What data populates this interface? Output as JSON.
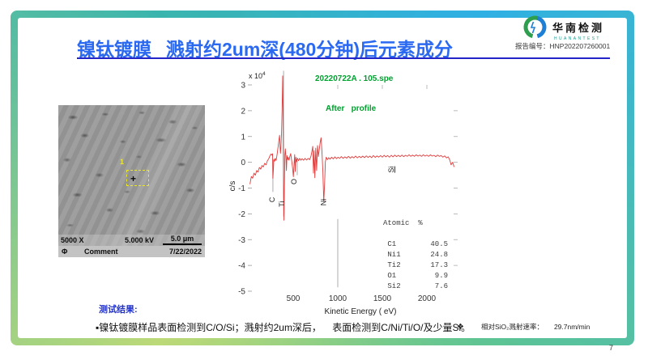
{
  "slide": {
    "title_part1": "镍钛镀膜",
    "title_part2": "溅射约2um深(480分钟)后元素成分",
    "report_number": "报告编号：HNP202207260001",
    "page_number": "7",
    "logo": {
      "name": "华南检测",
      "subtitle": "HUANANTEST"
    },
    "results": {
      "label": "测试结果:",
      "text": "▪镍钛镀膜样品表面检测到C/O/Si；溅射约2um深后，    表面检测到C/Ni/Ti/O/及少量Si。",
      "note_icon": "❖",
      "note_label": "相对SiO₂溅射速率：",
      "note_value": "29.7nm/min"
    }
  },
  "sem": {
    "magnification": "5000 X",
    "voltage": "5.000 kV",
    "scale_label": "5.0 μm",
    "roi_label": "1",
    "roi_cross": "+",
    "probe_symbol": "Φ",
    "comment_label": "Comment",
    "date": "7/22/2022"
  },
  "chart_data": {
    "type": "line",
    "title": "20220722A . 105.spe",
    "subtitle": "After   profile",
    "xlabel": "Kinetic Energy ( eV)",
    "ylabel": "c/s",
    "y_scale_label": "x 10",
    "y_scale_exponent": "4",
    "xlim": [
      0,
      2345
    ],
    "ylim": [
      -5,
      3
    ],
    "xticks": [
      500,
      1000,
      1500,
      2000
    ],
    "yticks": [
      3,
      2,
      1,
      0,
      -1,
      -2,
      -3,
      -4,
      -5
    ],
    "grid": false,
    "line_color": "#e23b3b",
    "dropline_color": "#b3b3b3",
    "title_color": "#00a02f",
    "element_labels": [
      {
        "label": "C",
        "ev": 290,
        "value": -1.45,
        "underline": false
      },
      {
        "label": "Ti",
        "ev": 400,
        "value": -1.62,
        "underline": false
      },
      {
        "label": "O",
        "ev": 536,
        "value": -0.75,
        "underline": false
      },
      {
        "label": "Ni",
        "ev": 866,
        "value": -1.55,
        "underline": false
      },
      {
        "label": "Si",
        "ev": 1627,
        "value": -0.28,
        "underline": true
      }
    ],
    "droplines": [
      {
        "ev": 272,
        "from": 0.1,
        "to": -1.15
      },
      {
        "ev": 392,
        "from": 3.55,
        "to": -2.1
      },
      {
        "ev": 545,
        "from": 0.05,
        "to": -0.5
      },
      {
        "ev": 1000,
        "from": -2.2,
        "to": -4.85
      }
    ],
    "atomic_table": {
      "header": "Atomic  %",
      "rows": [
        {
          "element": "C1",
          "value": "40.5"
        },
        {
          "element": "Ni1",
          "value": "24.8"
        },
        {
          "element": "Ti2",
          "value": "17.3"
        },
        {
          "element": "O1",
          "value": "9.9"
        },
        {
          "element": "Si2",
          "value": "7.6"
        }
      ]
    },
    "series": [
      {
        "name": "AES survey spectrum",
        "points": [
          [
            15,
            -0.85
          ],
          [
            30,
            -0.55
          ],
          [
            45,
            -0.62
          ],
          [
            60,
            -0.42
          ],
          [
            75,
            -0.5
          ],
          [
            90,
            -0.32
          ],
          [
            105,
            -0.38
          ],
          [
            120,
            -0.2
          ],
          [
            135,
            -0.27
          ],
          [
            150,
            -0.12
          ],
          [
            165,
            -0.18
          ],
          [
            180,
            -0.04
          ],
          [
            195,
            -0.1
          ],
          [
            210,
            0.06
          ],
          [
            225,
            0.14
          ],
          [
            240,
            0.26
          ],
          [
            252,
            0.32
          ],
          [
            263,
            0.27
          ],
          [
            268,
            0.33
          ],
          [
            272,
            -0.62
          ],
          [
            277,
            -0.3
          ],
          [
            283,
            0.12
          ],
          [
            291,
            0.04
          ],
          [
            299,
            0.15
          ],
          [
            307,
            0.07
          ],
          [
            315,
            0.2
          ],
          [
            323,
            0.4
          ],
          [
            331,
            0.62
          ],
          [
            339,
            0.85
          ],
          [
            347,
            1.05
          ],
          [
            352,
            0.6
          ],
          [
            357,
            0.35
          ],
          [
            363,
            0.65
          ],
          [
            369,
            1.15
          ],
          [
            375,
            2.1
          ],
          [
            382,
            3.35
          ],
          [
            387,
            1.6
          ],
          [
            392,
            -1.2
          ],
          [
            396,
            -2.25
          ],
          [
            401,
            -0.9
          ],
          [
            406,
            0.3
          ],
          [
            412,
            0.52
          ],
          [
            418,
            0.18
          ],
          [
            424,
            -0.32
          ],
          [
            430,
            0.26
          ],
          [
            436,
            0.1
          ],
          [
            444,
            0.2
          ],
          [
            453,
            0.08
          ],
          [
            462,
            0.22
          ],
          [
            472,
            0.34
          ],
          [
            482,
            0.08
          ],
          [
            492,
            -0.18
          ],
          [
            502,
            -0.56
          ],
          [
            509,
            -0.1
          ],
          [
            516,
            0.3
          ],
          [
            523,
            -0.36
          ],
          [
            530,
            0.2
          ],
          [
            538,
            0.02
          ],
          [
            548,
            0.16
          ],
          [
            560,
            0.06
          ],
          [
            572,
            0.15
          ],
          [
            586,
            0.08
          ],
          [
            600,
            0.14
          ],
          [
            616,
            0.08
          ],
          [
            632,
            0.15
          ],
          [
            650,
            0.09
          ],
          [
            668,
            0.15
          ],
          [
            684,
            0.1
          ],
          [
            698,
            0.22
          ],
          [
            710,
            0.42
          ],
          [
            719,
            0.62
          ],
          [
            727,
            -0.42
          ],
          [
            735,
            0.45
          ],
          [
            743,
            -0.6
          ],
          [
            753,
            0.55
          ],
          [
            763,
            -0.32
          ],
          [
            773,
            0.65
          ],
          [
            783,
            0.22
          ],
          [
            793,
            0.5
          ],
          [
            803,
            0.78
          ],
          [
            813,
            0.95
          ],
          [
            823,
            0.4
          ],
          [
            833,
            -0.35
          ],
          [
            843,
            -1.52
          ],
          [
            852,
            -0.88
          ],
          [
            861,
            0.02
          ],
          [
            871,
            0.2
          ],
          [
            884,
            0.1
          ],
          [
            898,
            0.18
          ],
          [
            914,
            0.12
          ],
          [
            932,
            0.2
          ],
          [
            950,
            0.13
          ],
          [
            968,
            0.21
          ],
          [
            986,
            0.14
          ],
          [
            1004,
            0.2
          ],
          [
            1022,
            0.15
          ],
          [
            1040,
            0.22
          ],
          [
            1060,
            0.15
          ],
          [
            1080,
            0.21
          ],
          [
            1100,
            0.16
          ],
          [
            1120,
            0.23
          ],
          [
            1140,
            0.16
          ],
          [
            1160,
            0.22
          ],
          [
            1180,
            0.17
          ],
          [
            1200,
            0.24
          ],
          [
            1220,
            0.17
          ],
          [
            1240,
            0.23
          ],
          [
            1260,
            0.18
          ],
          [
            1280,
            0.24
          ],
          [
            1300,
            0.18
          ],
          [
            1320,
            0.25
          ],
          [
            1340,
            0.19
          ],
          [
            1360,
            0.24
          ],
          [
            1380,
            0.18
          ],
          [
            1400,
            0.26
          ],
          [
            1420,
            0.19
          ],
          [
            1440,
            0.25
          ],
          [
            1460,
            0.2
          ],
          [
            1480,
            0.26
          ],
          [
            1500,
            0.2
          ],
          [
            1520,
            0.27
          ],
          [
            1540,
            0.21
          ],
          [
            1560,
            0.26
          ],
          [
            1580,
            0.2
          ],
          [
            1600,
            0.27
          ],
          [
            1620,
            0.21
          ],
          [
            1640,
            0.28
          ],
          [
            1660,
            0.22
          ],
          [
            1680,
            0.27
          ],
          [
            1700,
            0.22
          ],
          [
            1720,
            0.28
          ],
          [
            1740,
            0.22
          ],
          [
            1760,
            0.27
          ],
          [
            1780,
            0.23
          ],
          [
            1800,
            0.29
          ],
          [
            1820,
            0.23
          ],
          [
            1840,
            0.28
          ],
          [
            1860,
            0.23
          ],
          [
            1880,
            0.29
          ],
          [
            1900,
            0.24
          ],
          [
            1920,
            0.28
          ],
          [
            1940,
            0.23
          ],
          [
            1960,
            0.29
          ],
          [
            1980,
            0.24
          ],
          [
            2000,
            0.28
          ],
          [
            2020,
            0.23
          ],
          [
            2040,
            0.29
          ],
          [
            2060,
            0.24
          ],
          [
            2080,
            0.27
          ],
          [
            2100,
            0.22
          ],
          [
            2120,
            0.28
          ],
          [
            2140,
            0.23
          ],
          [
            2160,
            0.26
          ],
          [
            2180,
            0.2
          ],
          [
            2200,
            0.25
          ],
          [
            2220,
            0.17
          ],
          [
            2240,
            0.21
          ],
          [
            2258,
            0.08
          ],
          [
            2272,
            -0.1
          ],
          [
            2290,
            0.0
          ],
          [
            2305,
            -0.18
          ]
        ]
      }
    ]
  },
  "colors": {
    "title_blue": "#2b6af0",
    "underline_blue": "#2424c8",
    "frame_teal": "#3ab5ae",
    "frame_blue": "#2fb0e4",
    "frame_green": "#5ec493",
    "frame_yellow_green": "#bcd977",
    "chart_green_text": "#00a02f",
    "spectrum_red": "#e23b3b"
  }
}
